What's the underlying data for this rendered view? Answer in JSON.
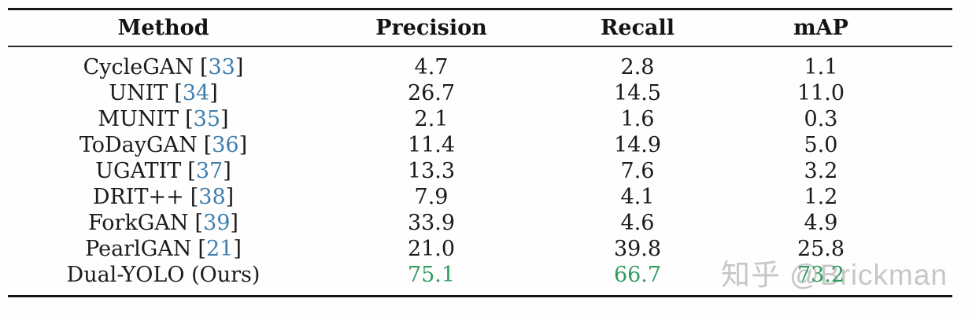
{
  "table": {
    "cite_open": "[",
    "cite_close": "]",
    "columns": [
      "Method",
      "Precision",
      "Recall",
      "mAP"
    ],
    "rows": [
      {
        "method": "CycleGAN",
        "citation": "33",
        "precision": "4.7",
        "recall": "2.8",
        "map": "1.1"
      },
      {
        "method": "UNIT",
        "citation": "34",
        "precision": "26.7",
        "recall": "14.5",
        "map": "11.0"
      },
      {
        "method": "MUNIT",
        "citation": "35",
        "precision": "2.1",
        "recall": "1.6",
        "map": "0.3"
      },
      {
        "method": "ToDayGAN",
        "citation": "36",
        "precision": "11.4",
        "recall": "14.9",
        "map": "5.0"
      },
      {
        "method": "UGATIT",
        "citation": "37",
        "precision": "13.3",
        "recall": "7.6",
        "map": "3.2"
      },
      {
        "method": "DRIT++",
        "citation": "38",
        "precision": "7.9",
        "recall": "4.1",
        "map": "1.2"
      },
      {
        "method": "ForkGAN",
        "citation": "39",
        "precision": "33.9",
        "recall": "4.6",
        "map": "4.9"
      },
      {
        "method": "PearlGAN",
        "citation": "21",
        "precision": "21.0",
        "recall": "39.8",
        "map": "25.8"
      },
      {
        "method": "Dual-YOLO (Ours)",
        "citation": null,
        "precision": "75.1",
        "recall": "66.7",
        "map": "73.2"
      }
    ],
    "highlight_row": 8
  },
  "watermark": {
    "text": "知乎 @Brickman"
  },
  "colors": {
    "citation_blue": "#3f7fad",
    "highlight_green": "#2f9e60",
    "watermark_gray": "#c7c7c7"
  }
}
